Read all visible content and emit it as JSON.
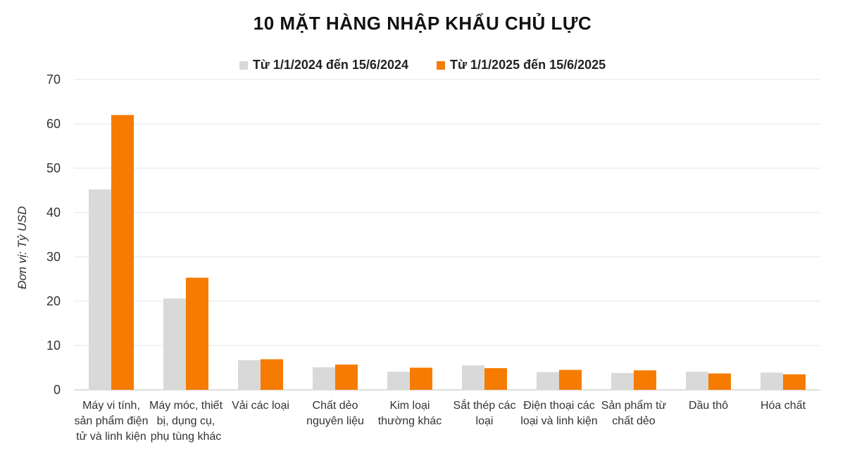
{
  "chart_data": {
    "type": "bar",
    "title": "10 MẶT HÀNG NHẬP KHẨU CHỦ LỰC",
    "ylabel": "Đơn vị: Tỷ USD",
    "xlabel": "",
    "ylim": [
      0,
      70
    ],
    "yticks": [
      "0",
      "10",
      "20",
      "30",
      "40",
      "50",
      "60",
      "70"
    ],
    "grid": true,
    "legend_position": "top-center",
    "categories": [
      "Máy vi tính, sản phẩm điện tử và linh kiện",
      "Máy móc, thiết bị, dụng cụ, phụ tùng khác",
      "Vải các loại",
      "Chất dẻo nguyên liệu",
      "Kim loại thường khác",
      "Sắt thép các loại",
      "Điện thoại các loại và linh kiện",
      "Sản phẩm từ chất dẻo",
      "Dầu thô",
      "Hóa chất"
    ],
    "series": [
      {
        "name": "Từ 1/1/2024 đến 15/6/2024",
        "color": "#d9d9d9",
        "values": [
          45.2,
          20.6,
          6.7,
          5.1,
          4.1,
          5.5,
          4.0,
          3.8,
          4.1,
          3.9
        ]
      },
      {
        "name": "Từ 1/1/2025 đến 15/6/2025",
        "color": "#f57c00",
        "values": [
          62.0,
          25.3,
          6.9,
          5.7,
          5.0,
          4.9,
          4.5,
          4.4,
          3.7,
          3.5
        ]
      }
    ]
  }
}
